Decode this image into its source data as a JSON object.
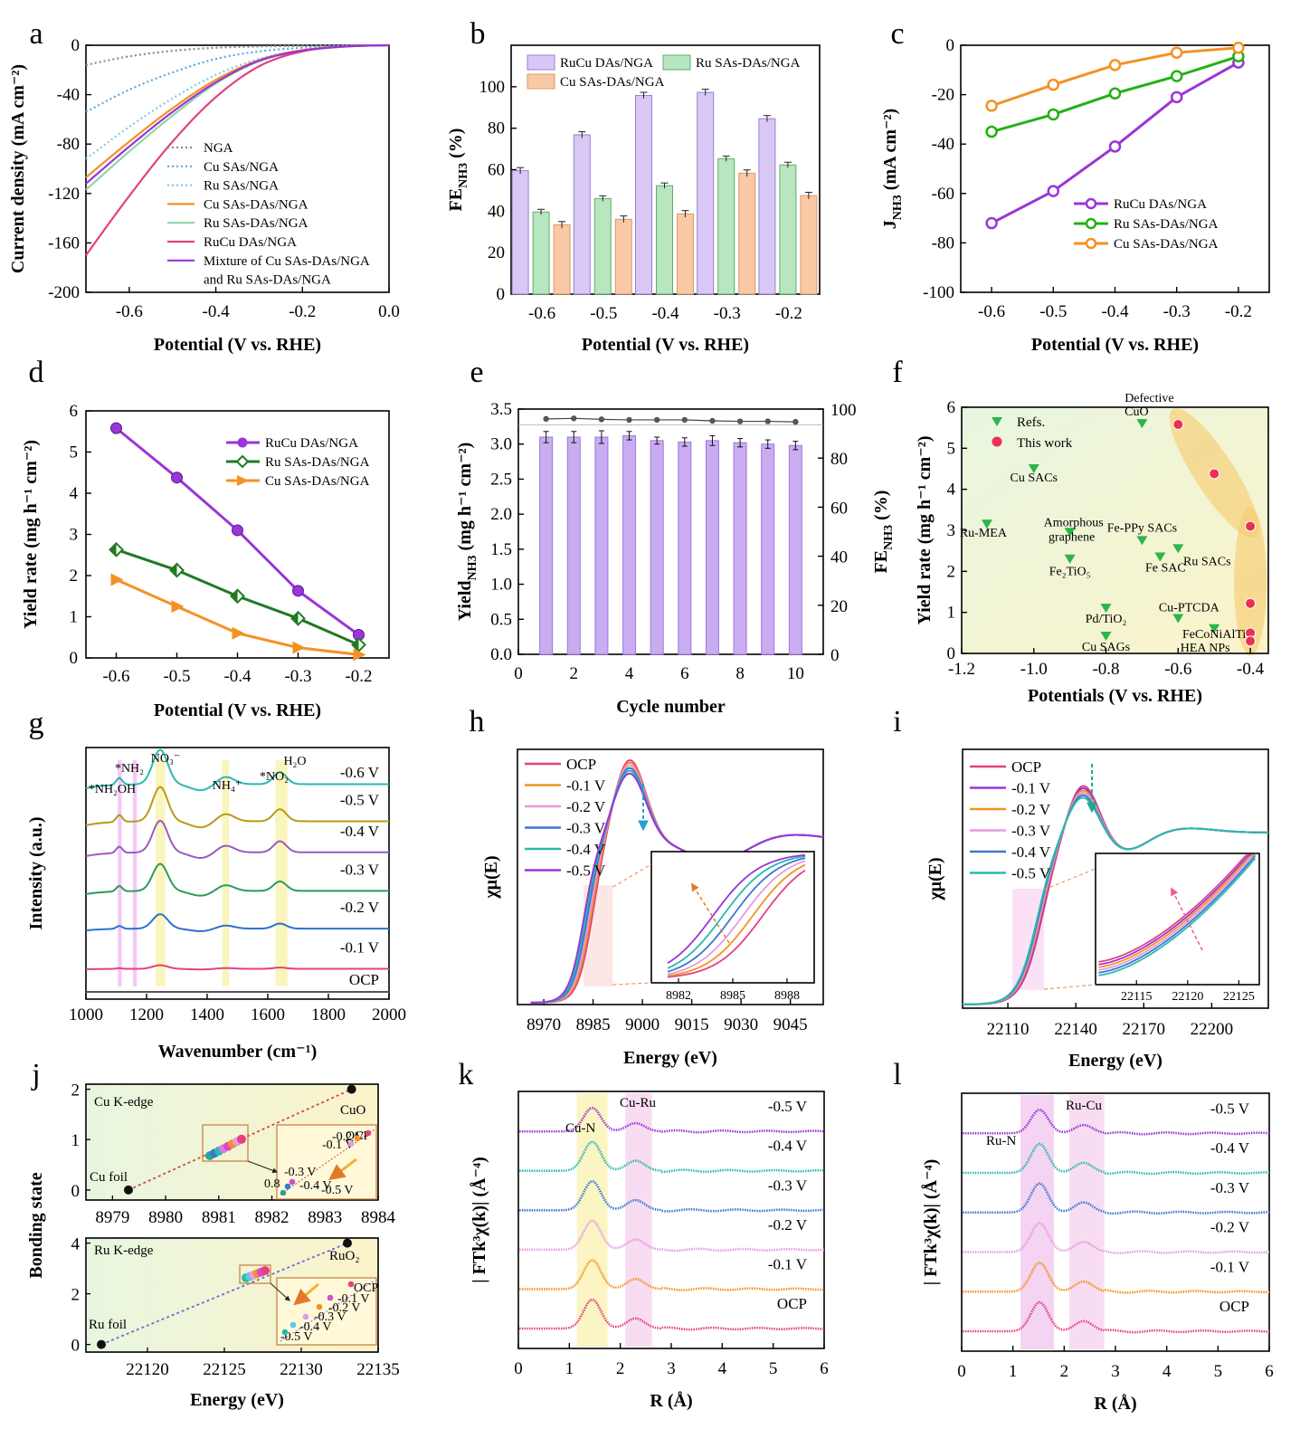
{
  "colors": {
    "purple": "#9a35d8",
    "purple_fill": "#d9c8f5",
    "green": "#23b014",
    "green_fill": "#b8e6be",
    "orange": "#f39224",
    "orange_fill": "#f9c9a5",
    "pink": "#e3417f",
    "dkgreen": "#207a22",
    "teal": "#2ab8b0",
    "blue": "#3a78d0",
    "lpink": "#e79adf",
    "olive": "#b89a18",
    "gray": "#888888"
  },
  "chart_data": [
    {
      "id": "a",
      "panel_label": "a",
      "type": "line",
      "xlabel": "Potential (V vs. RHE)",
      "ylabel": "Current density (mA cm⁻²)",
      "xlim": [
        -0.7,
        0.0
      ],
      "ylim": [
        -200,
        0
      ],
      "xticks": [
        "-0.6",
        "-0.4",
        "-0.2",
        "0.0"
      ],
      "xtick_values": [
        -0.6,
        -0.4,
        -0.2,
        0.0
      ],
      "yticks": [
        "-200",
        "-160",
        "-120",
        "-80",
        "-40",
        "0"
      ],
      "ytick_values": [
        -200,
        -160,
        -120,
        -80,
        -40,
        0
      ],
      "series": [
        {
          "name": "NGA",
          "color": "#888888",
          "dash": true,
          "x": [
            -0.7,
            -0.6,
            -0.5,
            -0.4,
            -0.3,
            -0.2,
            -0.1,
            0.0
          ],
          "y": [
            -16,
            -9,
            -4.5,
            -2,
            -1,
            -0.4,
            -0.1,
            0
          ]
        },
        {
          "name": "Cu SAs/NGA",
          "color": "#5aa8e0",
          "dash": true,
          "x": [
            -0.7,
            -0.6,
            -0.5,
            -0.4,
            -0.3,
            -0.2,
            -0.1,
            0.0
          ],
          "y": [
            -54,
            -36,
            -22,
            -11,
            -5,
            -2,
            -0.5,
            0
          ]
        },
        {
          "name": "Ru SAs/NGA",
          "color": "#7ec8ea",
          "dash": true,
          "x": [
            -0.7,
            -0.6,
            -0.5,
            -0.4,
            -0.3,
            -0.2,
            -0.1,
            0.0
          ],
          "y": [
            -92,
            -66,
            -43,
            -24,
            -11,
            -4,
            -1,
            0
          ]
        },
        {
          "name": "Cu SAs-DAs/NGA",
          "color": "#f39224",
          "dash": false,
          "x": [
            -0.7,
            -0.6,
            -0.5,
            -0.4,
            -0.3,
            -0.2,
            -0.1,
            0.0
          ],
          "y": [
            -107,
            -78,
            -51,
            -28,
            -12,
            -4,
            -1,
            0
          ]
        },
        {
          "name": "Ru SAs-DAs/NGA",
          "color": "#8fd6a8",
          "dash": false,
          "x": [
            -0.7,
            -0.6,
            -0.5,
            -0.4,
            -0.3,
            -0.2,
            -0.1,
            0.0
          ],
          "y": [
            -117,
            -86,
            -57,
            -31,
            -13,
            -4.5,
            -1,
            0
          ]
        },
        {
          "name": "RuCu DAs/NGA",
          "color": "#e3417f",
          "dash": false,
          "x": [
            -0.7,
            -0.6,
            -0.5,
            -0.4,
            -0.3,
            -0.2,
            -0.1,
            0.0
          ],
          "y": [
            -170,
            -122,
            -78,
            -42,
            -17,
            -5,
            -1,
            0
          ]
        },
        {
          "name": "Mixture of Cu SAs-DAs/NGA and Ru SAs-DAs/NGA",
          "color": "#9a35d8",
          "dash": false,
          "x": [
            -0.7,
            -0.6,
            -0.5,
            -0.4,
            -0.3,
            -0.2,
            -0.1,
            0.0
          ],
          "y": [
            -112,
            -82,
            -54,
            -30,
            -12.5,
            -4.3,
            -1,
            0
          ]
        }
      ],
      "legend": [
        "NGA",
        "Cu SAs/NGA",
        "Ru SAs/NGA",
        "Cu SAs-DAs/NGA",
        "Ru SAs-DAs/NGA",
        "RuCu DAs/NGA",
        "Mixture of Cu SAs-DAs/NGA",
        "and Ru SAs-DAs/NGA"
      ]
    },
    {
      "id": "b",
      "panel_label": "b",
      "type": "bar",
      "xlabel": "Potential (V vs. RHE)",
      "ylabel": "FE",
      "ylabel_sub": "NH3",
      "ylabel_suffix": " (%)",
      "categories": [
        "-0.6",
        "-0.5",
        "-0.4",
        "-0.3",
        "-0.2"
      ],
      "ylim": [
        0,
        120
      ],
      "yticks": [
        "0",
        "20",
        "40",
        "60",
        "80",
        "100"
      ],
      "ytick_values": [
        0,
        20,
        40,
        60,
        80,
        100
      ],
      "series": [
        {
          "name": "RuCu DAs/NGA",
          "values": [
            59.5,
            76.8,
            95.8,
            97.3,
            84.6
          ],
          "errors": [
            1.5,
            1.5,
            1.5,
            1.5,
            1.5
          ]
        },
        {
          "name": "Ru SAs-DAs/NGA",
          "values": [
            39.6,
            46.1,
            52.3,
            65.3,
            62.3
          ],
          "errors": [
            1.3,
            1.3,
            1.3,
            1.3,
            1.3
          ]
        },
        {
          "name": "Cu SAs-DAs/NGA",
          "values": [
            33.4,
            36.1,
            38.7,
            58.3,
            47.5
          ],
          "errors": [
            1.6,
            1.6,
            1.6,
            1.6,
            1.6
          ]
        }
      ]
    },
    {
      "id": "c",
      "panel_label": "c",
      "type": "line",
      "xlabel": "Potential (V vs. RHE)",
      "ylabel": "J",
      "ylabel_sub": "NH3",
      "ylabel_suffix": " (mA cm⁻²)",
      "xlim": [
        -0.65,
        -0.18
      ],
      "ylim": [
        -100,
        0
      ],
      "xticks": [
        "-0.6",
        "-0.5",
        "-0.4",
        "-0.3",
        "-0.2"
      ],
      "xtick_values": [
        -0.6,
        -0.5,
        -0.4,
        -0.3,
        -0.2
      ],
      "yticks": [
        "-100",
        "-80",
        "-60",
        "-40",
        "-20",
        "0"
      ],
      "ytick_values": [
        -100,
        -80,
        -60,
        -40,
        -20,
        0
      ],
      "series": [
        {
          "name": "RuCu DAs/NGA",
          "x": [
            -0.6,
            -0.5,
            -0.4,
            -0.3,
            -0.2
          ],
          "y": [
            -72,
            -59,
            -41,
            -21,
            -7
          ]
        },
        {
          "name": "Ru SAs-DAs/NGA",
          "x": [
            -0.6,
            -0.5,
            -0.4,
            -0.3,
            -0.2
          ],
          "y": [
            -35,
            -28,
            -19.5,
            -12.5,
            -4.5
          ]
        },
        {
          "name": "Cu SAs-DAs/NGA",
          "x": [
            -0.6,
            -0.5,
            -0.4,
            -0.3,
            -0.2
          ],
          "y": [
            -24.5,
            -16,
            -8,
            -3,
            -1
          ]
        }
      ]
    },
    {
      "id": "d",
      "panel_label": "d",
      "type": "line",
      "xlabel": "Potential (V vs. RHE)",
      "ylabel": "Yield rate (mg h⁻¹ cm⁻²)",
      "xlim": [
        -0.65,
        -0.15
      ],
      "ylim": [
        0,
        6
      ],
      "xticks": [
        "-0.6",
        "-0.5",
        "-0.4",
        "-0.3",
        "-0.2"
      ],
      "xtick_values": [
        -0.6,
        -0.5,
        -0.4,
        -0.3,
        -0.2
      ],
      "yticks": [
        "0",
        "1",
        "2",
        "3",
        "4",
        "5",
        "6"
      ],
      "ytick_values": [
        0,
        1,
        2,
        3,
        4,
        5,
        6
      ],
      "series": [
        {
          "name": "RuCu DAs/NGA",
          "x": [
            -0.6,
            -0.5,
            -0.4,
            -0.3,
            -0.2
          ],
          "y": [
            5.58,
            4.38,
            3.1,
            1.63,
            0.56
          ]
        },
        {
          "name": "Ru SAs-DAs/NGA",
          "x": [
            -0.6,
            -0.5,
            -0.4,
            -0.3,
            -0.2
          ],
          "y": [
            2.63,
            2.13,
            1.5,
            0.96,
            0.32
          ]
        },
        {
          "name": "Cu SAs-DAs/NGA",
          "x": [
            -0.6,
            -0.5,
            -0.4,
            -0.3,
            -0.2
          ],
          "y": [
            1.9,
            1.25,
            0.6,
            0.25,
            0.08
          ]
        }
      ]
    },
    {
      "id": "e",
      "panel_label": "e",
      "type": "bar",
      "xlabel": "Cycle number",
      "ylabel": "Yield",
      "ylabel_sub": "NH3",
      "ylabel_suffix": " (mg h⁻¹ cm⁻²)",
      "y2label": "FE",
      "y2label_sub": "NH3",
      "y2label_suffix": " (%)",
      "categories": [
        "1",
        "2",
        "3",
        "4",
        "5",
        "6",
        "7",
        "8",
        "9",
        "10"
      ],
      "xlim": [
        0,
        11
      ],
      "xticks": [
        "0",
        "2",
        "4",
        "6",
        "8",
        "10"
      ],
      "xtick_values": [
        0,
        2,
        4,
        6,
        8,
        10
      ],
      "ylim": [
        0,
        3.5
      ],
      "yticks": [
        "0.0",
        "0.5",
        "1.0",
        "1.5",
        "2.0",
        "2.5",
        "3.0",
        "3.5"
      ],
      "ytick_values": [
        0,
        0.5,
        1.0,
        1.5,
        2.0,
        2.5,
        3.0,
        3.5
      ],
      "y2lim": [
        0,
        100
      ],
      "y2ticks": [
        "0",
        "20",
        "40",
        "60",
        "80",
        "100"
      ],
      "y2tick_values": [
        0,
        20,
        40,
        60,
        80,
        100
      ],
      "yield_values": [
        3.1,
        3.1,
        3.1,
        3.12,
        3.05,
        3.03,
        3.05,
        3.02,
        3.0,
        2.98
      ],
      "yield_errors": [
        0.08,
        0.08,
        0.09,
        0.06,
        0.05,
        0.06,
        0.07,
        0.06,
        0.06,
        0.06
      ],
      "fe_values": [
        96,
        96.2,
        95.8,
        95.6,
        95.6,
        95.6,
        95.2,
        95.0,
        95.0,
        94.8
      ]
    },
    {
      "id": "f",
      "panel_label": "f",
      "type": "scatter",
      "xlabel": "Potentials (V vs. RHE)",
      "ylabel": "Yield rate (mg h⁻¹ cm⁻²)",
      "xlim": [
        -1.2,
        -0.35
      ],
      "ylim": [
        0,
        6
      ],
      "xticks": [
        "-1.2",
        "-1.0",
        "-0.8",
        "-0.6",
        "-0.4"
      ],
      "xtick_values": [
        -1.2,
        -1.0,
        -0.8,
        -0.6,
        -0.4
      ],
      "yticks": [
        "0",
        "1",
        "2",
        "3",
        "4",
        "5",
        "6"
      ],
      "ytick_values": [
        0,
        1,
        2,
        3,
        4,
        5,
        6
      ],
      "legend": [
        "Refs.",
        "This work"
      ],
      "refs": [
        {
          "label": "Defective CuO",
          "x": -0.7,
          "y": 5.6
        },
        {
          "label": "Cu SACs",
          "x": -1.0,
          "y": 4.5
        },
        {
          "label": "Ru-MEA",
          "x": -1.13,
          "y": 3.15
        },
        {
          "label": "Amorphous graphene",
          "x": -0.9,
          "y": 2.95
        },
        {
          "label": "Fe-PPy SACs",
          "x": -0.7,
          "y": 2.75
        },
        {
          "label": "Ru SACs",
          "x": -0.6,
          "y": 2.55
        },
        {
          "label": "Fe SAC",
          "x": -0.65,
          "y": 2.35
        },
        {
          "label": "Fe₂TiO₅",
          "x": -0.9,
          "y": 2.3
        },
        {
          "label": "Pd/TiO₂",
          "x": -0.8,
          "y": 1.1
        },
        {
          "label": "Cu-PTCDA",
          "x": -0.6,
          "y": 0.85
        },
        {
          "label": "FeCoNiAlTi HEA NPs",
          "x": -0.5,
          "y": 0.6
        },
        {
          "label": "Cu SAGs",
          "x": -0.8,
          "y": 0.42
        }
      ],
      "this_work": [
        {
          "x": -0.6,
          "y": 5.58
        },
        {
          "x": -0.5,
          "y": 4.38
        },
        {
          "x": -0.4,
          "y": 3.1
        },
        {
          "x": -0.4,
          "y": 1.22
        },
        {
          "x": -0.4,
          "y": 0.5
        },
        {
          "x": -0.4,
          "y": 0.3
        }
      ]
    },
    {
      "id": "g",
      "panel_label": "g",
      "type": "line",
      "xlabel": "Wavenumber (cm⁻¹)",
      "ylabel": "Intensity (a.u.)",
      "xlim": [
        1000,
        2000
      ],
      "xticks": [
        "1000",
        "1200",
        "1400",
        "1600",
        "1800",
        "2000"
      ],
      "xtick_values": [
        1000,
        1200,
        1400,
        1600,
        1800,
        2000
      ],
      "series_names": [
        "OCP",
        "-0.1 V",
        "-0.2 V",
        "-0.3 V",
        "-0.4 V",
        "-0.5 V",
        "-0.6 V"
      ],
      "peaks": [
        "*NH₂OH",
        "*NH₂",
        "NO₃⁻",
        "NH₄⁺",
        "*NO₂",
        "H₂O"
      ]
    },
    {
      "id": "h",
      "panel_label": "h",
      "type": "line",
      "xlabel": "Energy (eV)",
      "ylabel": "χμ(E)",
      "xlim": [
        8962,
        9055
      ],
      "xticks": [
        "8970",
        "8985",
        "9000",
        "9015",
        "9030",
        "9045"
      ],
      "xtick_values": [
        8970,
        8985,
        9000,
        9015,
        9030,
        9045
      ],
      "series_names": [
        "OCP",
        "-0.1 V",
        "-0.2 V",
        "-0.3 V",
        "-0.4 V",
        "-0.5 V"
      ],
      "inset_xticks": [
        "8982",
        "8985",
        "8988"
      ]
    },
    {
      "id": "i",
      "panel_label": "i",
      "type": "line",
      "xlabel": "Energy (eV)",
      "ylabel": "χμ(E)",
      "xlim": [
        22090,
        22225
      ],
      "xticks": [
        "22110",
        "22140",
        "22170",
        "22200"
      ],
      "xtick_values": [
        22110,
        22140,
        22170,
        22200
      ],
      "series_names": [
        "OCP",
        "-0.1 V",
        "-0.2 V",
        "-0.3 V",
        "-0.4 V",
        "-0.5 V"
      ],
      "inset_xticks": [
        "22115",
        "22120",
        "22125"
      ]
    },
    {
      "id": "j",
      "panel_label": "j",
      "type": "scatter",
      "xlabel": "Energy (eV)",
      "ylabel": "Bonding state",
      "top": {
        "title": "Cu K-edge",
        "xlim": [
          8978.5,
          8984
        ],
        "ylim": [
          -0.2,
          2.1
        ],
        "xticks": [
          "8979",
          "8980",
          "8981",
          "8982",
          "8983",
          "8984"
        ],
        "xtick_values": [
          8979,
          8980,
          8981,
          8982,
          8983,
          8984
        ],
        "yticks": [
          "0",
          "1",
          "2"
        ],
        "ytick_values": [
          0,
          1,
          2
        ],
        "refs": [
          {
            "label": "Cu foil",
            "x": 8979.3,
            "y": 0
          },
          {
            "label": "CuO",
            "x": 8983.5,
            "y": 2
          }
        ],
        "inset_labels": [
          "OCP",
          "-0.1 V",
          "-0.2 V",
          "-0.3 V",
          "-0.4 V",
          "-0.5 V",
          "0.8"
        ]
      },
      "bottom": {
        "title": "Ru K-edge",
        "xlim": [
          22116,
          22135
        ],
        "ylim": [
          -0.3,
          4.2
        ],
        "xticks": [
          "22120",
          "22125",
          "22130",
          "22135"
        ],
        "xtick_values": [
          22120,
          22125,
          22130,
          22135
        ],
        "yticks": [
          "0",
          "2",
          "4"
        ],
        "ytick_values": [
          0,
          2,
          4
        ],
        "refs": [
          {
            "label": "Ru foil",
            "x": 22117,
            "y": 0
          },
          {
            "label": "RuO₂",
            "x": 22133,
            "y": 4
          }
        ],
        "inset_labels": [
          "OCP",
          "-0.1 V",
          "-0.2 V",
          "-0.3 V",
          "-0.4 V",
          "-0.5 V"
        ]
      }
    },
    {
      "id": "k",
      "panel_label": "k",
      "type": "line",
      "xlabel": "R (Å)",
      "ylabel": "| FTk³χ(k)|  (Å⁻⁴)",
      "xlim": [
        0,
        6
      ],
      "xticks": [
        "0",
        "1",
        "2",
        "3",
        "4",
        "5",
        "6"
      ],
      "xtick_values": [
        0,
        1,
        2,
        3,
        4,
        5,
        6
      ],
      "series_names": [
        "OCP",
        "-0.1 V",
        "-0.2 V",
        "-0.3 V",
        "-0.4 V",
        "-0.5 V"
      ],
      "annotations": [
        "Cu-N",
        "Cu-Ru"
      ]
    },
    {
      "id": "l",
      "panel_label": "l",
      "type": "line",
      "xlabel": "R (Å)",
      "ylabel": "| FTk³χ(k)|  (Å⁻⁴)",
      "xlim": [
        0,
        6
      ],
      "xticks": [
        "0",
        "1",
        "2",
        "3",
        "4",
        "5",
        "6"
      ],
      "xtick_values": [
        0,
        1,
        2,
        3,
        4,
        5,
        6
      ],
      "series_names": [
        "OCP",
        "-0.1 V",
        "-0.2 V",
        "-0.3 V",
        "-0.4 V",
        "-0.5 V"
      ],
      "annotations": [
        "Ru-N",
        "Ru-Cu"
      ]
    }
  ]
}
